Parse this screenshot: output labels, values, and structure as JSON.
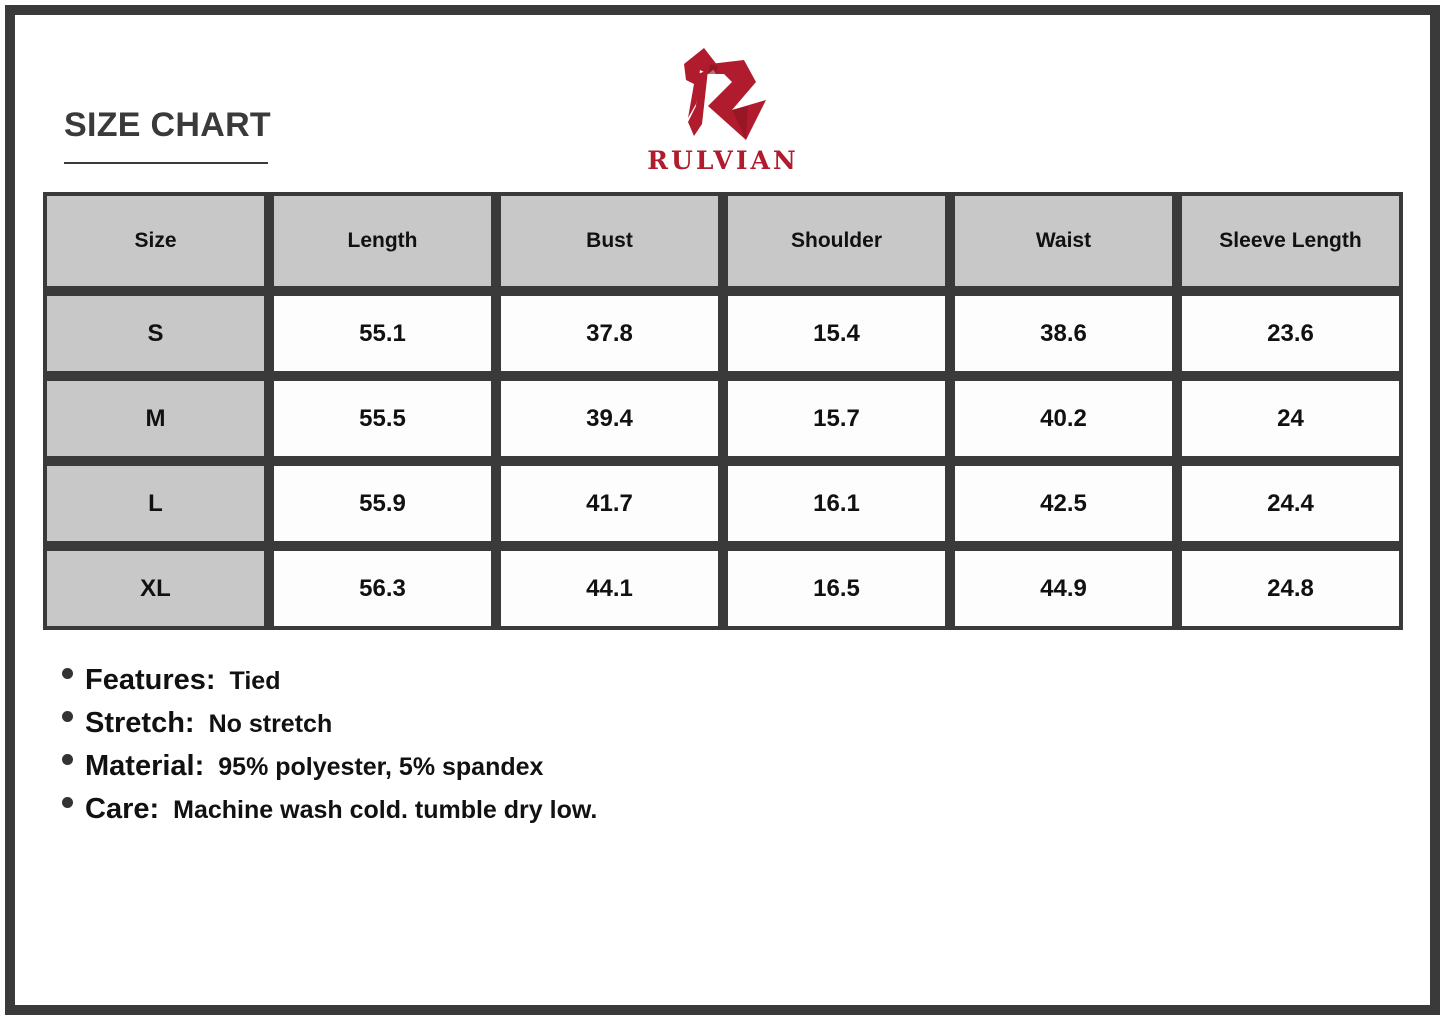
{
  "title": "SIZE CHART",
  "brand": {
    "name": "RULVIAN",
    "color": "#b01c2e"
  },
  "table": {
    "headers": [
      "Size",
      "Length",
      "Bust",
      "Shoulder",
      "Waist",
      "Sleeve Length"
    ],
    "rows": [
      [
        "S",
        "55.1",
        "37.8",
        "15.4",
        "38.6",
        "23.6"
      ],
      [
        "M",
        "55.5",
        "39.4",
        "15.7",
        "40.2",
        "24"
      ],
      [
        "L",
        "55.9",
        "41.7",
        "16.1",
        "42.5",
        "24.4"
      ],
      [
        "XL",
        "56.3",
        "44.1",
        "16.5",
        "44.9",
        "24.8"
      ]
    ]
  },
  "notes": [
    {
      "label": "Features:",
      "value": "Tied"
    },
    {
      "label": "Stretch:",
      "value": "No stretch"
    },
    {
      "label": "Material:",
      "value": "95% polyester, 5% spandex"
    },
    {
      "label": "Care:",
      "value": "Machine wash cold. tumble dry low."
    }
  ]
}
